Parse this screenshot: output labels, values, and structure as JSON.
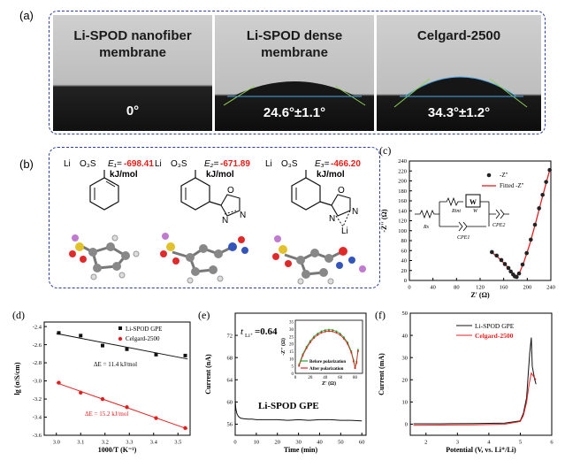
{
  "panel_a": {
    "label": "(a)",
    "photos": [
      {
        "title": "Li-SPOD nanofiber membrane",
        "angle": "0°"
      },
      {
        "title": "Li-SPOD dense membrane",
        "angle": "24.6°±1.1°"
      },
      {
        "title": "Celgard-2500",
        "angle": "34.3°±1.2°"
      }
    ]
  },
  "panel_b": {
    "label": "(b)",
    "structures": [
      {
        "energy_label": "E₁=",
        "energy_value": "-698.41",
        "unit": "kJ/mol"
      },
      {
        "energy_label": "E₂=",
        "energy_value": "-671.89",
        "unit": "kJ/mol"
      },
      {
        "energy_label": "E₃=",
        "energy_value": "-466.20",
        "unit": "kJ/mol"
      }
    ],
    "atoms": {
      "li": "Li",
      "o3s": "O₃S",
      "n": "N",
      "o": "O"
    },
    "colors": {
      "energy": "#e0201b",
      "box": "#2a3f9a"
    }
  },
  "chart_data": [
    {
      "panel": "(c)",
      "type": "scatter",
      "xlabel": "Z' (Ω)",
      "ylabel": "-Z'' (Ω)",
      "xlim": [
        0,
        240
      ],
      "ylim": [
        0,
        240
      ],
      "xticks": [
        "0",
        "40",
        "80",
        "120",
        "160",
        "200",
        "240"
      ],
      "yticks": [
        "0",
        "20",
        "40",
        "60",
        "80",
        "100",
        "120",
        "140",
        "160",
        "180",
        "200",
        "220",
        "240"
      ],
      "legend": [
        "-Z''",
        "Fitted -Z''"
      ],
      "circuit_labels": {
        "rs": "Rs",
        "rint": "Rint",
        "w": "W",
        "w2": "W",
        "cpe1": "CPE1",
        "cpe2": "CPE2"
      },
      "series": [
        {
          "name": "-Z''",
          "x": [
            140,
            148,
            156,
            162,
            168,
            172,
            176,
            179,
            182,
            186,
            192,
            199,
            206,
            213,
            220,
            226,
            232,
            238
          ],
          "y": [
            57,
            50,
            41,
            33,
            25,
            18,
            12,
            8,
            7,
            14,
            32,
            55,
            82,
            112,
            145,
            172,
            198,
            222
          ]
        },
        {
          "name": "Fitted -Z''",
          "x": [
            138,
            150,
            162,
            172,
            180,
            186,
            194,
            204,
            214,
            224,
            232,
            239
          ],
          "y": [
            58,
            47,
            33,
            19,
            8,
            13,
            36,
            72,
            115,
            160,
            196,
            226
          ]
        }
      ]
    },
    {
      "panel": "(d)",
      "type": "scatter",
      "xlabel": "1000/T (K⁻¹)",
      "ylabel": "lg (σ/S/cm)",
      "xlim": [
        2.95,
        3.55
      ],
      "ylim": [
        -3.6,
        -2.35
      ],
      "xticks": [
        "3.0",
        "3.1",
        "3.2",
        "3.3",
        "3.4",
        "3.5"
      ],
      "yticks": [
        "-2.4",
        "-2.6",
        "-2.8",
        "-3.0",
        "-3.2",
        "-3.4",
        "-3.6"
      ],
      "legend": [
        "Li-SPOD GPE",
        "Celgard-2500"
      ],
      "annotations": [
        "ΔE = 11.4 kJ/mol",
        "ΔE = 15.2 kJ/mol"
      ],
      "series": [
        {
          "name": "Li-SPOD GPE",
          "x": [
            3.01,
            3.1,
            3.19,
            3.29,
            3.41,
            3.53
          ],
          "y": [
            -2.47,
            -2.5,
            -2.61,
            -2.65,
            -2.71,
            -2.72
          ]
        },
        {
          "name": "Celgard-2500",
          "x": [
            3.01,
            3.1,
            3.19,
            3.29,
            3.41,
            3.53
          ],
          "y": [
            -3.02,
            -3.13,
            -3.2,
            -3.29,
            -3.41,
            -3.52
          ]
        }
      ]
    },
    {
      "panel": "(e)",
      "type": "line",
      "xlabel": "Time (min)",
      "ylabel": "Current (nA)",
      "xlim": [
        0,
        62
      ],
      "ylim": [
        54,
        76
      ],
      "xticks": [
        "0",
        "10",
        "20",
        "30",
        "40",
        "50",
        "60"
      ],
      "yticks": [
        "56",
        "60",
        "64",
        "68",
        "72"
      ],
      "title_text": "t",
      "title_sub": "Li⁺",
      "title_value": "=0.64",
      "series_label": "Li-SPOD GPE",
      "series": [
        {
          "x": [
            0,
            0.3,
            0.8,
            1.5,
            2.5,
            4,
            6,
            8,
            10,
            15,
            20,
            25,
            30,
            35,
            40,
            45,
            50,
            55,
            60
          ],
          "y": [
            60.5,
            58.8,
            57.9,
            57.4,
            57.1,
            57.0,
            56.9,
            56.9,
            56.8,
            56.8,
            56.8,
            56.7,
            56.8,
            56.7,
            56.8,
            56.8,
            56.7,
            56.7,
            56.6
          ]
        }
      ],
      "inset": {
        "xlabel": "Z' (Ω)",
        "ylabel": "-Z'' (Ω)",
        "xlim": [
          0,
          90
        ],
        "ylim": [
          0,
          36
        ],
        "xticks": [
          "0",
          "20",
          "40",
          "60",
          "80"
        ],
        "yticks": [
          "0",
          "5",
          "10",
          "15",
          "20",
          "25",
          "30",
          "35"
        ],
        "legend": [
          "Before polarization",
          "After polarization"
        ],
        "series": [
          {
            "name": "Before polarization",
            "x": [
              5,
              10,
              15,
              20,
              25,
              30,
              35,
              40,
              45,
              50,
              55,
              60,
              65,
              70,
              75,
              78,
              80,
              82,
              84
            ],
            "y": [
              6,
              13,
              18,
              22,
              25,
              27,
              28.5,
              29.3,
              29.6,
              29.4,
              28.5,
              27,
              24.5,
              21,
              15,
              9,
              4,
              8,
              16
            ]
          },
          {
            "name": "After polarization",
            "x": [
              5,
              10,
              15,
              20,
              25,
              30,
              35,
              40,
              45,
              50,
              55,
              60,
              65,
              70,
              75,
              78,
              80,
              82,
              84
            ],
            "y": [
              5,
              12,
              17,
              21,
              24,
              26,
              27.5,
              28.3,
              28.6,
              28.4,
              27.5,
              26,
              23.5,
              20,
              14,
              8,
              3.5,
              7,
              15
            ]
          }
        ]
      },
      "colors": {
        "before": "#22a331",
        "after": "#e02020"
      }
    },
    {
      "panel": "(f)",
      "type": "line",
      "xlabel": "Potential (V, vs. Li⁺/Li)",
      "ylabel": "Current (mA)",
      "xlim": [
        1.5,
        6
      ],
      "ylim": [
        -5,
        50
      ],
      "xticks": [
        "2",
        "3",
        "4",
        "5",
        "6"
      ],
      "yticks": [
        "0",
        "10",
        "20",
        "30",
        "40",
        "50"
      ],
      "legend": [
        "Li-SPOD GPE",
        "Celgard-2500"
      ],
      "series": [
        {
          "name": "Li-SPOD GPE",
          "x": [
            1.6,
            2.5,
            3.5,
            4.5,
            5.0,
            5.1,
            5.2,
            5.25,
            5.3,
            5.35,
            5.38,
            5.42,
            5.46,
            5.5
          ],
          "y": [
            0.2,
            0.2,
            0.3,
            0.5,
            1.5,
            5,
            12,
            22,
            32,
            39,
            26,
            23,
            20,
            18
          ]
        },
        {
          "name": "Celgard-2500",
          "x": [
            1.6,
            2.5,
            3.5,
            4.5,
            5.0,
            5.1,
            5.2,
            5.28,
            5.35,
            5.4,
            5.45,
            5.5
          ],
          "y": [
            -0.5,
            -0.4,
            -0.3,
            0.0,
            1.2,
            4,
            10,
            18,
            23,
            22,
            21,
            20
          ]
        }
      ]
    }
  ]
}
